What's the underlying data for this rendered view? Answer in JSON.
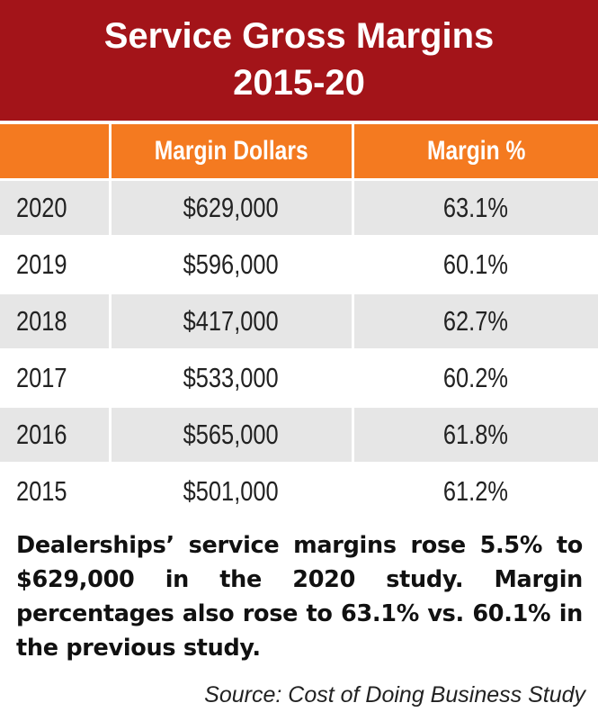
{
  "title": {
    "line1": "Service Gross Margins",
    "line2": "2015-20"
  },
  "colors": {
    "title_bg": "#a31419",
    "header_bg": "#f47a20",
    "row_alt": "#e6e6e6"
  },
  "chart_data": {
    "type": "table",
    "title": "Service Gross Margins 2015-20",
    "columns": [
      "",
      "Margin Dollars",
      "Margin %"
    ],
    "rows": [
      {
        "year": "2020",
        "dollars": "$629,000",
        "pct": "63.1%"
      },
      {
        "year": "2019",
        "dollars": "$596,000",
        "pct": "60.1%"
      },
      {
        "year": "2018",
        "dollars": "$417,000",
        "pct": "62.7%"
      },
      {
        "year": "2017",
        "dollars": "$533,000",
        "pct": "60.2%"
      },
      {
        "year": "2016",
        "dollars": "$565,000",
        "pct": "61.8%"
      },
      {
        "year": "2015",
        "dollars": "$501,000",
        "pct": "61.2%"
      }
    ]
  },
  "caption": "Dealerships’ service margins rose 5.5% to $629,000 in the 2020 study. Margin percentages also rose to 63.1% vs. 60.1% in the previous study.",
  "source": "Source: Cost of Doing Business Study"
}
